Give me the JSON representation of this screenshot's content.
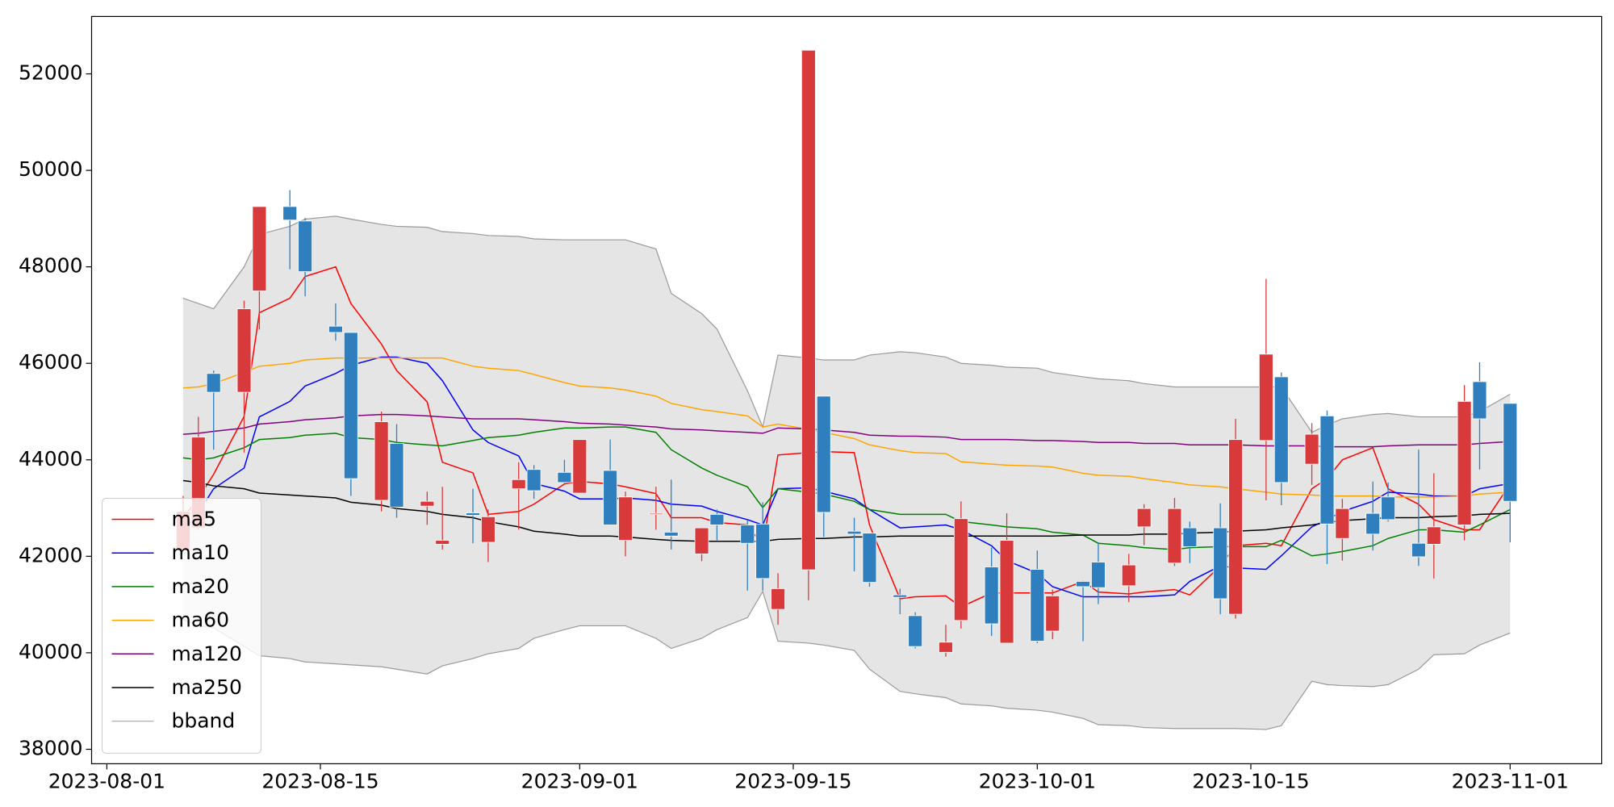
{
  "chart_data": {
    "type": "candlestick",
    "x": [
      "2023-08-06",
      "2023-08-07",
      "2023-08-08",
      "2023-08-10",
      "2023-08-11",
      "2023-08-13",
      "2023-08-14",
      "2023-08-16",
      "2023-08-17",
      "2023-08-19",
      "2023-08-20",
      "2023-08-22",
      "2023-08-23",
      "2023-08-25",
      "2023-08-26",
      "2023-08-28",
      "2023-08-29",
      "2023-08-31",
      "2023-09-01",
      "2023-09-03",
      "2023-09-04",
      "2023-09-06",
      "2023-09-07",
      "2023-09-09",
      "2023-09-10",
      "2023-09-12",
      "2023-09-13",
      "2023-09-14",
      "2023-09-16",
      "2023-09-17",
      "2023-09-19",
      "2023-09-20",
      "2023-09-22",
      "2023-09-23",
      "2023-09-25",
      "2023-09-26",
      "2023-09-28",
      "2023-09-29",
      "2023-10-01",
      "2023-10-02",
      "2023-10-04",
      "2023-10-05",
      "2023-10-07",
      "2023-10-08",
      "2023-10-10",
      "2023-10-11",
      "2023-10-13",
      "2023-10-14",
      "2023-10-16",
      "2023-10-17",
      "2023-10-19",
      "2023-10-20",
      "2023-10-21",
      "2023-10-23",
      "2023-10-24",
      "2023-10-26",
      "2023-10-27",
      "2023-10-29",
      "2023-10-30",
      "2023-11-01"
    ],
    "open": [
      42120,
      42590,
      45790,
      45400,
      47500,
      49250,
      48950,
      46770,
      46640,
      43160,
      44340,
      43040,
      42250,
      42900,
      42290,
      43400,
      43800,
      43740,
      43310,
      43780,
      42330,
      42870,
      42500,
      42050,
      42870,
      42650,
      42670,
      40900,
      41720,
      45320,
      42520,
      42480,
      41200,
      40770,
      40010,
      40670,
      41780,
      40200,
      41730,
      40450,
      41480,
      41880,
      41390,
      42610,
      41860,
      42590,
      42590,
      40800,
      44400,
      45720,
      43910,
      44910,
      42370,
      42890,
      43230,
      42270,
      42250,
      42650,
      45620,
      45170
    ],
    "high": [
      43250,
      44890,
      45850,
      47300,
      49250,
      49590,
      49010,
      47240,
      46640,
      45000,
      44740,
      43340,
      43440,
      43400,
      42970,
      43950,
      43890,
      44000,
      44420,
      44420,
      43340,
      43440,
      43590,
      42600,
      42970,
      42740,
      43120,
      41650,
      52490,
      45320,
      42800,
      42480,
      41330,
      40840,
      40580,
      43140,
      42180,
      42890,
      42120,
      41310,
      41480,
      42290,
      42050,
      43080,
      43210,
      42720,
      43100,
      44850,
      47750,
      45810,
      44760,
      45020,
      43190,
      43550,
      43530,
      44210,
      43720,
      45550,
      46020,
      45170
    ],
    "low": [
      42100,
      42550,
      44210,
      44150,
      46700,
      47950,
      47390,
      46470,
      43250,
      42930,
      42800,
      42650,
      42140,
      42270,
      41880,
      42550,
      43190,
      43500,
      43310,
      42650,
      42000,
      42550,
      42140,
      41900,
      42330,
      41290,
      41290,
      40580,
      41090,
      42400,
      41690,
      41370,
      40800,
      40090,
      39920,
      40500,
      40350,
      40200,
      40200,
      40280,
      40240,
      41010,
      41050,
      42230,
      41800,
      41860,
      40800,
      40710,
      43160,
      43060,
      43480,
      41840,
      41910,
      42120,
      42720,
      41800,
      41540,
      42330,
      43800,
      42290
    ],
    "close": [
      42930,
      44470,
      45400,
      47130,
      49250,
      48970,
      47900,
      46640,
      43610,
      44790,
      43020,
      43140,
      42330,
      42850,
      42820,
      43590,
      43360,
      43530,
      44420,
      42650,
      43230,
      42890,
      42420,
      42590,
      42650,
      42270,
      41540,
      41330,
      52490,
      42910,
      42460,
      41460,
      41150,
      40130,
      40220,
      42780,
      40600,
      42330,
      40240,
      41180,
      41370,
      41350,
      41820,
      42990,
      42990,
      42200,
      41120,
      44420,
      46190,
      43530,
      44530,
      42670,
      42990,
      42460,
      42760,
      41990,
      42610,
      45210,
      44850,
      43140
    ],
    "up_color": "#d8393b",
    "down_color": "#2f7fbf",
    "series": [
      {
        "name": "ma5",
        "color": "#ff0000",
        "values": [
          42800,
          43200,
          43700,
          44900,
          47050,
          47350,
          47800,
          48000,
          47240,
          46400,
          45850,
          45200,
          43950,
          43730,
          42870,
          42930,
          43080,
          43500,
          43550,
          43500,
          43440,
          43300,
          42800,
          42800,
          42700,
          42650,
          42220,
          44100,
          44150,
          44170,
          44150,
          42650,
          41120,
          41160,
          41180,
          40950,
          41240,
          41240,
          41240,
          41240,
          41480,
          41260,
          41220,
          41260,
          41310,
          41200,
          41800,
          42220,
          42270,
          42220,
          43400,
          43610,
          44000,
          44250,
          43400,
          43080,
          42760,
          42550,
          42550,
          43500
        ]
      },
      {
        "name": "ma10",
        "color": "#0000ff",
        "values": [
          42500,
          42900,
          43400,
          43830,
          44890,
          45210,
          45530,
          45790,
          45960,
          46130,
          46130,
          46000,
          45640,
          44620,
          44360,
          44080,
          43510,
          43350,
          43190,
          43190,
          43210,
          43160,
          43080,
          43040,
          42930,
          42760,
          42650,
          43400,
          43420,
          43350,
          43190,
          42970,
          42590,
          42610,
          42650,
          42550,
          42220,
          41910,
          41650,
          41370,
          41160,
          41160,
          41160,
          41160,
          41200,
          41480,
          41800,
          41760,
          41730,
          42010,
          42610,
          42760,
          42930,
          43140,
          43330,
          43290,
          43250,
          43250,
          43400,
          43510
        ]
      },
      {
        "name": "ma20",
        "color": "#008000",
        "values": [
          44040,
          44000,
          44040,
          44250,
          44420,
          44460,
          44510,
          44550,
          44460,
          44420,
          44360,
          44310,
          44290,
          44400,
          44460,
          44510,
          44570,
          44660,
          44660,
          44680,
          44680,
          44570,
          44210,
          43830,
          43680,
          43440,
          43010,
          43400,
          43330,
          43290,
          43140,
          42970,
          42870,
          42870,
          42870,
          42720,
          42650,
          42610,
          42570,
          42500,
          42440,
          42270,
          42220,
          42180,
          42140,
          42180,
          42200,
          42200,
          42200,
          42330,
          42010,
          42050,
          42100,
          42220,
          42370,
          42550,
          42550,
          42500,
          42650,
          42970
        ]
      },
      {
        "name": "ma60",
        "color": "#ffa500",
        "values": [
          45490,
          45510,
          45580,
          45810,
          45940,
          46000,
          46070,
          46110,
          46110,
          46110,
          46110,
          46110,
          46110,
          45940,
          45900,
          45850,
          45770,
          45600,
          45530,
          45490,
          45450,
          45320,
          45170,
          45040,
          45000,
          44910,
          44680,
          44740,
          44630,
          44570,
          44440,
          44310,
          44190,
          44150,
          44130,
          43960,
          43910,
          43890,
          43870,
          43850,
          43720,
          43680,
          43660,
          43610,
          43530,
          43480,
          43440,
          43400,
          43330,
          43290,
          43270,
          43250,
          43250,
          43250,
          43230,
          43230,
          43230,
          43250,
          43290,
          43330
        ]
      },
      {
        "name": "ma120",
        "color": "#800080",
        "values": [
          44530,
          44550,
          44590,
          44660,
          44740,
          44790,
          44830,
          44870,
          44910,
          44940,
          44940,
          44910,
          44890,
          44850,
          44850,
          44850,
          44830,
          44790,
          44760,
          44740,
          44720,
          44680,
          44640,
          44620,
          44600,
          44570,
          44550,
          44660,
          44640,
          44620,
          44570,
          44510,
          44490,
          44490,
          44470,
          44420,
          44420,
          44420,
          44400,
          44400,
          44380,
          44360,
          44360,
          44340,
          44340,
          44310,
          44310,
          44310,
          44290,
          44290,
          44290,
          44270,
          44270,
          44270,
          44290,
          44310,
          44310,
          44310,
          44340,
          44380
        ]
      },
      {
        "name": "ma250",
        "color": "#000000",
        "values": [
          43570,
          43530,
          43460,
          43400,
          43310,
          43270,
          43250,
          43210,
          43120,
          43060,
          42990,
          42930,
          42870,
          42800,
          42720,
          42610,
          42520,
          42460,
          42420,
          42420,
          42400,
          42350,
          42330,
          42310,
          42310,
          42310,
          42310,
          42350,
          42370,
          42370,
          42400,
          42400,
          42420,
          42420,
          42420,
          42420,
          42420,
          42420,
          42420,
          42420,
          42440,
          42440,
          42440,
          42460,
          42460,
          42480,
          42500,
          42520,
          42550,
          42590,
          42650,
          42700,
          42740,
          42780,
          42800,
          42800,
          42820,
          42840,
          42870,
          42890
        ]
      }
    ],
    "bband": {
      "name": "bband",
      "color": "#999999",
      "fill": "#e5e5e5",
      "upper": [
        47350,
        47240,
        47130,
        48000,
        48670,
        48840,
        48990,
        49050,
        48990,
        48880,
        48840,
        48820,
        48730,
        48690,
        48650,
        48630,
        48580,
        48560,
        48560,
        48560,
        48560,
        48370,
        47450,
        47030,
        46710,
        45430,
        44680,
        46170,
        46110,
        46070,
        46070,
        46170,
        46240,
        46220,
        46130,
        46000,
        45960,
        45920,
        45900,
        45810,
        45720,
        45680,
        45640,
        45580,
        45510,
        45510,
        45510,
        45510,
        45510,
        45510,
        44570,
        44720,
        44850,
        44940,
        44960,
        44890,
        44890,
        44890,
        45000,
        45360
      ],
      "lower": [
        40690,
        40560,
        40520,
        40130,
        39940,
        39880,
        39810,
        39770,
        39750,
        39710,
        39660,
        39560,
        39730,
        39880,
        39980,
        40090,
        40300,
        40480,
        40560,
        40560,
        40560,
        40300,
        40090,
        40300,
        40480,
        40730,
        41270,
        40240,
        40200,
        40160,
        40050,
        39660,
        39200,
        39150,
        39070,
        38940,
        38900,
        38850,
        38810,
        38770,
        38640,
        38510,
        38490,
        38450,
        38430,
        38430,
        38430,
        38430,
        38410,
        38490,
        39410,
        39340,
        39320,
        39300,
        39340,
        39660,
        39960,
        39980,
        40160,
        40410
      ]
    },
    "xlim": [
      "2023-07-31",
      "2023-11-07"
    ],
    "xticks": [
      "2023-08-01",
      "2023-08-15",
      "2023-09-01",
      "2023-09-15",
      "2023-10-01",
      "2023-10-15",
      "2023-11-01"
    ],
    "ylim": [
      37700,
      53190
    ],
    "yticks": [
      38000,
      40000,
      42000,
      44000,
      46000,
      48000,
      50000,
      52000
    ],
    "legend": "lower left"
  }
}
